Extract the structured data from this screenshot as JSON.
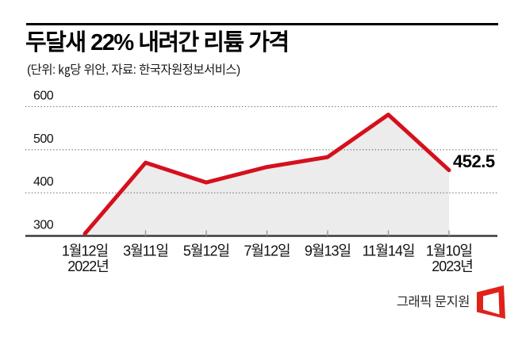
{
  "header": {
    "title": "두달새 22% 내려간 리튬 가격",
    "subtitle": "(단위: ㎏당 위안, 자료: 한국자원정보서비스)"
  },
  "chart_data": {
    "type": "line",
    "title": "두달새 22% 내려간 리튬 가격",
    "unit_source_note": "(단위: ㎏당 위안, 자료: 한국자원정보서비스)",
    "categories": [
      "1월12일",
      "3월11일",
      "5월12일",
      "7월12일",
      "9월13일",
      "11월14일",
      "1월10일"
    ],
    "year_labels": [
      {
        "index": 0,
        "text": "2022년"
      },
      {
        "index": 6,
        "text": "2023년"
      }
    ],
    "series": [
      {
        "name": "리튬 가격",
        "values": [
          305,
          470,
          424,
          460,
          483,
          581.5,
          452.5
        ]
      }
    ],
    "yticks": [
      600,
      500,
      400,
      300
    ],
    "ylim": [
      300,
      620
    ],
    "grid": "dotted-horizontal",
    "legend": "none",
    "last_value_label": "452.5",
    "line_color": "#d5101d",
    "area_color": "#ececec"
  },
  "footer": {
    "credit": "그래픽 문지원",
    "logo": "asia-economy-red-logo"
  },
  "colors": {
    "accent_red": "#d5101d",
    "logo_red": "#e02219",
    "area_gray": "#ececec",
    "axis": "#3a3a3a",
    "grid": "#6f6f6f",
    "text": "#111111"
  }
}
